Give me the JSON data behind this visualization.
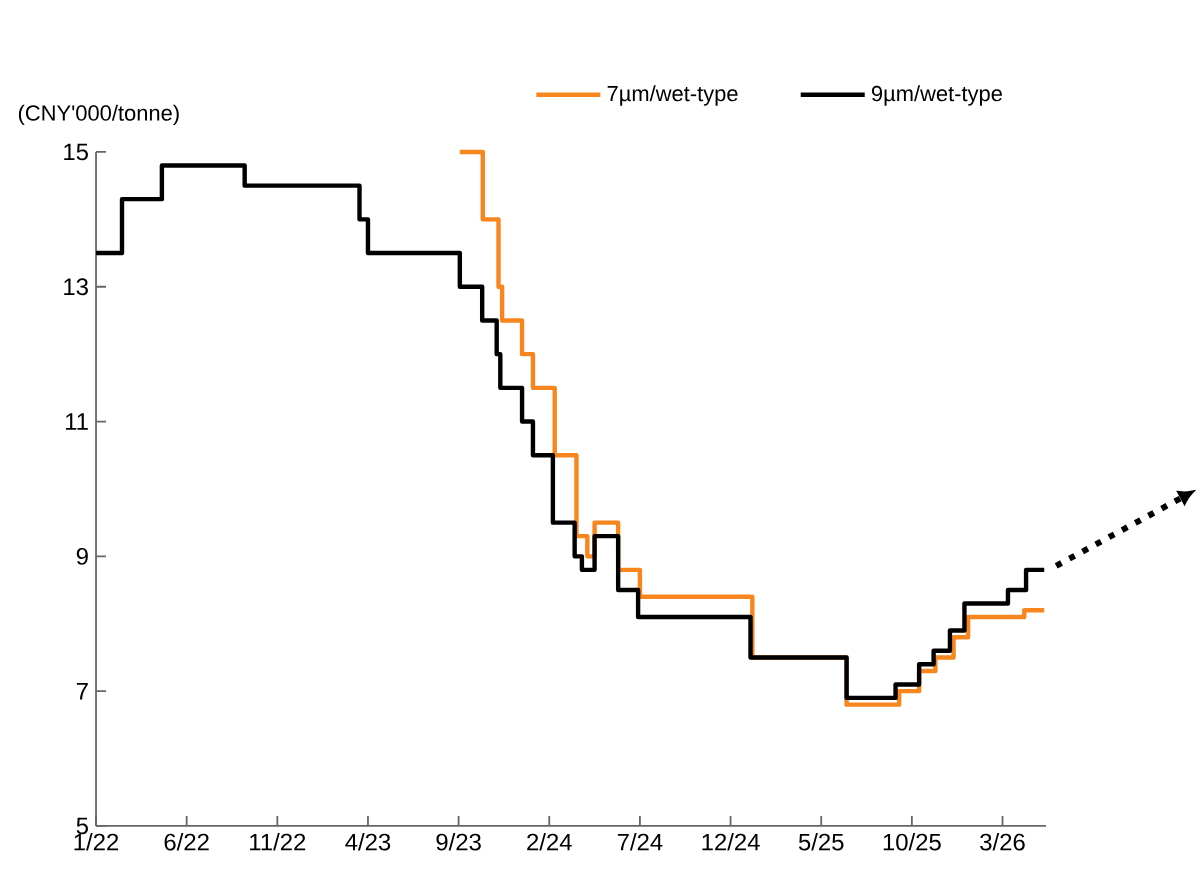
{
  "chart_data": {
    "type": "step",
    "ylabel": "(CNY'000/tonne)",
    "xlim": [
      "2022-01-01",
      "2026-05-13"
    ],
    "ylim": [
      5,
      15
    ],
    "yticks": [
      5,
      7,
      9,
      11,
      13,
      15
    ],
    "xticks": [
      {
        "value": "2022-01-01",
        "label": "1/22"
      },
      {
        "value": "2022-06-01",
        "label": "6/22"
      },
      {
        "value": "2022-11-01",
        "label": "11/22"
      },
      {
        "value": "2023-04-01",
        "label": "4/23"
      },
      {
        "value": "2023-09-01",
        "label": "9/23"
      },
      {
        "value": "2024-02-01",
        "label": "2/24"
      },
      {
        "value": "2024-07-01",
        "label": "7/24"
      },
      {
        "value": "2024-12-01",
        "label": "12/24"
      },
      {
        "value": "2025-05-01",
        "label": "5/25"
      },
      {
        "value": "2025-10-01",
        "label": "10/25"
      },
      {
        "value": "2026-03-01",
        "label": "3/26"
      }
    ],
    "legend": "top",
    "grid": false,
    "marker": "none",
    "line_style": "solid",
    "series": [
      {
        "name": "7µm/wet-type",
        "color": "#f7861e",
        "x": [
          "2023-09-03",
          "2023-10-11",
          "2023-11-07",
          "2023-11-13",
          "2023-12-16",
          "2024-01-04",
          "2024-02-10",
          "2024-03-16",
          "2024-04-04",
          "2024-04-16",
          "2024-05-25",
          "2024-07-01",
          "2025-01-07",
          "2025-06-13",
          "2025-09-10",
          "2025-10-13",
          "2025-11-10",
          "2025-12-10",
          "2026-01-04",
          "2026-04-07",
          "2026-05-10"
        ],
        "values": [
          15.0,
          14.0,
          13.0,
          12.5,
          12.0,
          11.5,
          10.5,
          9.3,
          9.0,
          9.5,
          8.8,
          8.4,
          7.5,
          6.8,
          7.0,
          7.3,
          7.5,
          7.8,
          8.1,
          8.2,
          8.2
        ]
      },
      {
        "name": "9µm/wet-type",
        "color": "#000000",
        "x": [
          "2022-01-01",
          "2022-02-14",
          "2022-04-20",
          "2022-09-07",
          "2023-03-17",
          "2023-04-01",
          "2023-09-03",
          "2023-10-10",
          "2023-11-04",
          "2023-11-10",
          "2023-12-16",
          "2024-01-04",
          "2024-02-07",
          "2024-03-13",
          "2024-03-25",
          "2024-04-16",
          "2024-05-25",
          "2024-06-28",
          "2025-01-04",
          "2025-06-13",
          "2025-09-04",
          "2025-10-13",
          "2025-11-07",
          "2025-12-04",
          "2025-12-28",
          "2026-03-10",
          "2026-04-10",
          "2026-05-10"
        ],
        "values": [
          13.5,
          14.3,
          14.8,
          14.5,
          14.0,
          13.5,
          13.0,
          12.5,
          12.0,
          11.5,
          11.0,
          10.5,
          9.5,
          9.0,
          8.8,
          9.3,
          8.5,
          8.1,
          7.5,
          6.9,
          7.1,
          7.4,
          7.6,
          7.9,
          8.3,
          8.5,
          8.8,
          8.8
        ]
      }
    ]
  }
}
